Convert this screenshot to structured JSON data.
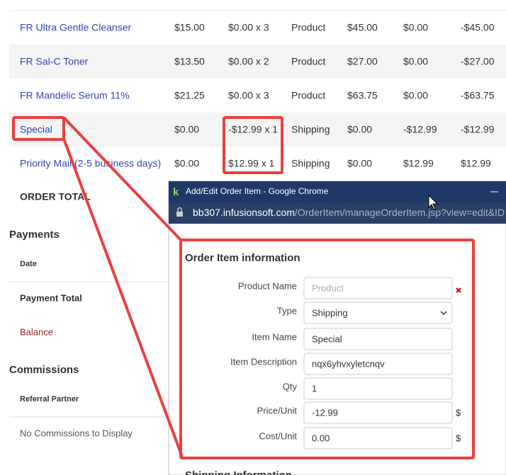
{
  "table": {
    "rows": [
      [
        "FR Ultra Gentle Cleanser",
        "$15.00",
        "$0.00 x 3",
        "Product",
        "$45.00",
        "$0.00",
        "-$45.00"
      ],
      [
        "FR Sal-C Toner",
        "$13.50",
        "$0.00 x 2",
        "Product",
        "$27.00",
        "$0.00",
        "-$27.00"
      ],
      [
        "FR Mandelic Serum 11%",
        "$21.25",
        "$0.00 x 3",
        "Product",
        "$63.75",
        "$0.00",
        "-$63.75"
      ],
      [
        "Special",
        "$0.00",
        "-$12.99 x 1",
        "Shipping",
        "$0.00",
        "-$12.99",
        "-$12.99"
      ],
      [
        "Priority Mail (2-5 business days)",
        "$0.00",
        "$12.99 x 1",
        "Shipping",
        "$0.00",
        "$12.99",
        "$12.99"
      ]
    ],
    "total_label": "ORDER TOTAL"
  },
  "payments": {
    "title": "Payments",
    "date_header": "Date",
    "total": "Payment Total",
    "balance": "Balance"
  },
  "commissions": {
    "title": "Commissions",
    "header": "Referral Partner",
    "empty": "No Commissions to Display"
  },
  "popup": {
    "window_title": "Add/Edit Order Item - Google Chrome",
    "url_host": "bb307.infusionsoft.com",
    "url_path": "/OrderItem/manageOrderItem.jsp?view=edit&ID",
    "section": "Order Item information",
    "fields": [
      {
        "label": "Product Name",
        "placeholder": "Product"
      },
      {
        "label": "Type",
        "value": "Shipping"
      },
      {
        "label": "Item Name",
        "value": "Special"
      },
      {
        "label": "Item Description",
        "value": "nqx6yhvxyletcnqv"
      },
      {
        "label": "Qty",
        "value": "1"
      },
      {
        "label": "Price/Unit",
        "value": "-12.99",
        "suffix": "$"
      },
      {
        "label": "Cost/Unit",
        "value": "0.00",
        "suffix": "$"
      }
    ],
    "next_section": "Shipping Information"
  }
}
